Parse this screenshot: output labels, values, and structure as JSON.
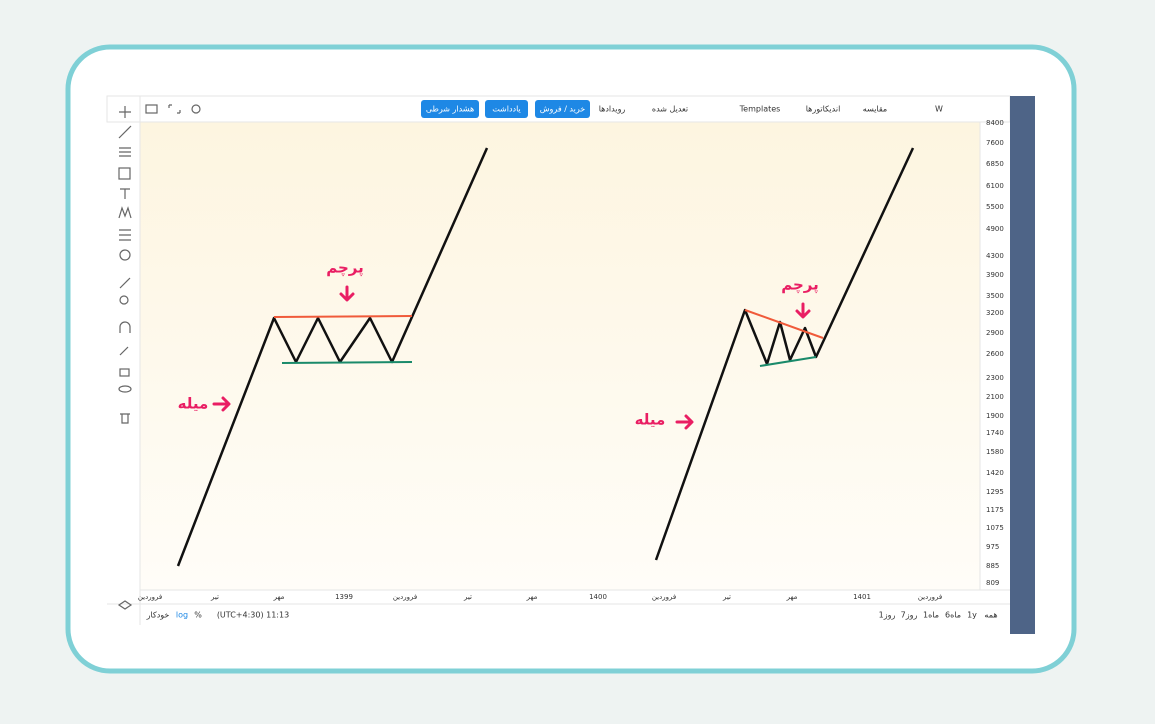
{
  "toolbar": {
    "buttons": [
      "هشدار شرطی",
      "یادداشت",
      "خرید / فروش"
    ],
    "items": [
      "رویدادها",
      "تعدیل شده",
      "Templates",
      "اندیکاتورها",
      "مقایسه",
      "W"
    ]
  },
  "annotations": {
    "left_flag": "پرچم",
    "left_pole": "میله",
    "right_flag": "پرچم",
    "right_pole": "میله"
  },
  "price_axis": [
    8400,
    7600,
    6850,
    6100,
    5500,
    4900,
    4300,
    3900,
    3500,
    3200,
    2900,
    2600,
    2300,
    2100,
    1900,
    1740,
    1580,
    1420,
    1295,
    1175,
    1075,
    975,
    885,
    809
  ],
  "time_axis": [
    "فروردین",
    "تیر",
    "مهر",
    "1399",
    "فروردین",
    "تیر",
    "مهر",
    "1400",
    "فروردین",
    "تیر",
    "مهر",
    "1401",
    "فروردین"
  ],
  "bottom_bar": {
    "left": [
      "خودکار",
      "log",
      "%",
      "(UTC+4:30) 11:13"
    ],
    "ranges": [
      "همه",
      "1y",
      "6ماه",
      "1ماه",
      "7روز",
      "1روز"
    ]
  }
}
